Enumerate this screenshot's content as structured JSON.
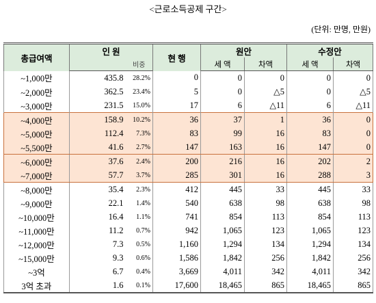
{
  "title": "<근로소득공제 구간>",
  "unit": "(단위: 만명, 만원)",
  "table": {
    "header_top": [
      "총급여액",
      "인 원",
      "현 행",
      "원안",
      "수정안"
    ],
    "header_sub": [
      "비중",
      "세 액",
      "차액",
      "세 액",
      "차액"
    ],
    "rows": [
      [
        "~1,000만",
        "435.8",
        "28.2%",
        "0",
        "0",
        "0",
        "0",
        "0"
      ],
      [
        "~2,000만",
        "362.5",
        "23.4%",
        "5",
        "0",
        "△5",
        "0",
        "△5"
      ],
      [
        "~3,000만",
        "231.5",
        "15.0%",
        "17",
        "6",
        "△11",
        "6",
        "△11"
      ],
      [
        "~4,000만",
        "158.9",
        "10.2%",
        "36",
        "37",
        "1",
        "36",
        "0"
      ],
      [
        "~5,000만",
        "112.4",
        "7.3%",
        "83",
        "99",
        "16",
        "83",
        "0"
      ],
      [
        "~5,500만",
        "41.6",
        "2.7%",
        "147",
        "163",
        "16",
        "147",
        "0"
      ],
      [
        "~6,000만",
        "37.6",
        "2.4%",
        "200",
        "216",
        "16",
        "202",
        "2"
      ],
      [
        "~7,000만",
        "57.7",
        "3.7%",
        "285",
        "301",
        "16",
        "288",
        "3"
      ],
      [
        "~8,000만",
        "35.4",
        "2.3%",
        "412",
        "445",
        "33",
        "445",
        "33"
      ],
      [
        "~9,000만",
        "22.1",
        "1.4%",
        "540",
        "638",
        "98",
        "638",
        "98"
      ],
      [
        "~10,000만",
        "16.4",
        "1.1%",
        "741",
        "854",
        "113",
        "854",
        "113"
      ],
      [
        "~11,000만",
        "11.2",
        "0.7%",
        "942",
        "1,065",
        "123",
        "1,065",
        "123"
      ],
      [
        "~12,000만",
        "7.3",
        "0.5%",
        "1,160",
        "1,294",
        "134",
        "1,294",
        "134"
      ],
      [
        "~15,000만",
        "9.3",
        "0.6%",
        "1,586",
        "1,842",
        "256",
        "1,842",
        "256"
      ],
      [
        "~3억",
        "6.7",
        "0.4%",
        "3,669",
        "4,011",
        "342",
        "4,011",
        "342"
      ],
      [
        "3억 초과",
        "1.6",
        "0.1%",
        "17,600",
        "18,465",
        "865",
        "18,465",
        "865"
      ]
    ]
  }
}
